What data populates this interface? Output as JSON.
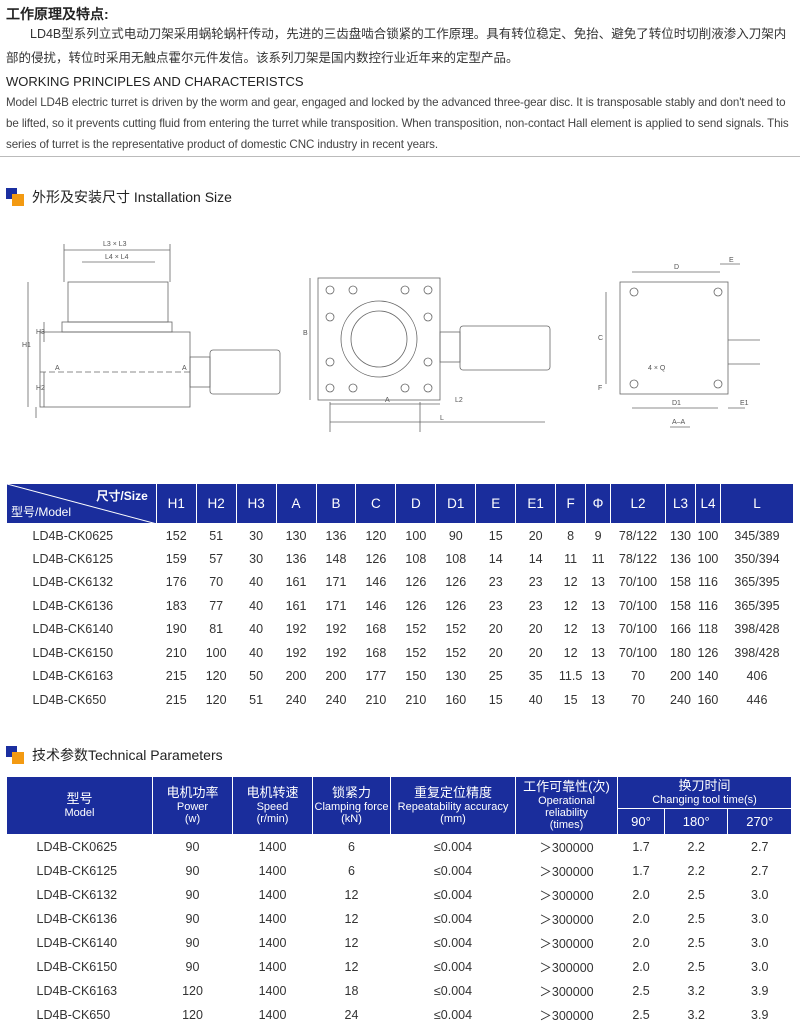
{
  "intro": {
    "title_cn": "工作原理及特点:",
    "para_cn": "LD4B型系列立式电动刀架采用蜗轮蜗杆传动，先进的三齿盘啮合锁紧的工作原理。具有转位稳定、免抬、避免了转位时切削液渗入刀架内部的侵扰，转位时采用无触点霍尔元件发信。该系列刀架是国内数控行业近年来的定型产品。",
    "title_en": "WORKING PRINCIPLES AND CHARACTERISTCS",
    "para_en": "Model LD4B electric turret  is driven by the worm and gear, engaged and locked by the advanced three-gear disc. It is transposable stably and don't need to be lifted, so it prevents cutting fluid from entering the turret while transposition. When transposition, non-contact Hall element is applied to send signals. This series of turret is the representative product of domestic CNC industry in recent years."
  },
  "install": {
    "title": "外形及安装尺寸 Installation Size",
    "labels": {
      "l3": "L3 × L3",
      "l4": "L4 × L4",
      "h1": "H1",
      "h2": "H2",
      "h3": "H3",
      "a": "A",
      "b": "B",
      "l2": "L2",
      "l": "L",
      "d": "D",
      "e": "E",
      "c": "C",
      "q": "4 × Q",
      "f": "F",
      "d1": "D1",
      "e1": "E1",
      "aa": "A–A"
    }
  },
  "size_table": {
    "corner_size": "尺寸/Size",
    "corner_model": "型号/Model",
    "headers": [
      "H1",
      "H2",
      "H3",
      "A",
      "B",
      "C",
      "D",
      "D1",
      "E",
      "E1",
      "F",
      "Φ",
      "L2",
      "L3",
      "L4",
      "L"
    ],
    "rows": [
      [
        "LD4B-CK0625",
        "152",
        "51",
        "30",
        "130",
        "136",
        "120",
        "100",
        "90",
        "15",
        "20",
        "8",
        "9",
        "78/122",
        "130",
        "100",
        "345/389"
      ],
      [
        "LD4B-CK6125",
        "159",
        "57",
        "30",
        "136",
        "148",
        "126",
        "108",
        "108",
        "14",
        "14",
        "11",
        "11",
        "78/122",
        "136",
        "100",
        "350/394"
      ],
      [
        "LD4B-CK6132",
        "176",
        "70",
        "40",
        "161",
        "171",
        "146",
        "126",
        "126",
        "23",
        "23",
        "12",
        "13",
        "70/100",
        "158",
        "116",
        "365/395"
      ],
      [
        "LD4B-CK6136",
        "183",
        "77",
        "40",
        "161",
        "171",
        "146",
        "126",
        "126",
        "23",
        "23",
        "12",
        "13",
        "70/100",
        "158",
        "116",
        "365/395"
      ],
      [
        "LD4B-CK6140",
        "190",
        "81",
        "40",
        "192",
        "192",
        "168",
        "152",
        "152",
        "20",
        "20",
        "12",
        "13",
        "70/100",
        "166",
        "118",
        "398/428"
      ],
      [
        "LD4B-CK6150",
        "210",
        "100",
        "40",
        "192",
        "192",
        "168",
        "152",
        "152",
        "20",
        "20",
        "12",
        "13",
        "70/100",
        "180",
        "126",
        "398/428"
      ],
      [
        "LD4B-CK6163",
        "215",
        "120",
        "50",
        "200",
        "200",
        "177",
        "150",
        "130",
        "25",
        "35",
        "11.5",
        "13",
        "70",
        "200",
        "140",
        "406"
      ],
      [
        "LD4B-CK650",
        "215",
        "120",
        "51",
        "240",
        "240",
        "210",
        "210",
        "160",
        "15",
        "40",
        "15",
        "13",
        "70",
        "240",
        "160",
        "446"
      ]
    ]
  },
  "tech": {
    "title": "技术参数Technical Parameters",
    "headers": [
      {
        "cn": "型号",
        "en": "Model"
      },
      {
        "cn": "电机功率",
        "en": "Power",
        "unit": "(w)"
      },
      {
        "cn": "电机转速",
        "en": "Speed",
        "unit": "(r/min)"
      },
      {
        "cn": "锁紧力",
        "en": "Clamping force",
        "unit": "(kN)"
      },
      {
        "cn": "重复定位精度",
        "en": "Repeatability accuracy",
        "unit": "(mm)"
      },
      {
        "cn": "工作可靠性(次)",
        "en": "Operational reliability",
        "unit": "(times)"
      },
      {
        "cn": "换刀时间",
        "en": "Changing tool time(s)"
      }
    ],
    "angles": [
      "90°",
      "180°",
      "270°"
    ],
    "rows": [
      [
        "LD4B-CK0625",
        "90",
        "1400",
        "6",
        "≤0.004",
        "＞300000",
        "1.7",
        "2.2",
        "2.7"
      ],
      [
        "LD4B-CK6125",
        "90",
        "1400",
        "6",
        "≤0.004",
        "＞300000",
        "1.7",
        "2.2",
        "2.7"
      ],
      [
        "LD4B-CK6132",
        "90",
        "1400",
        "12",
        "≤0.004",
        "＞300000",
        "2.0",
        "2.5",
        "3.0"
      ],
      [
        "LD4B-CK6136",
        "90",
        "1400",
        "12",
        "≤0.004",
        "＞300000",
        "2.0",
        "2.5",
        "3.0"
      ],
      [
        "LD4B-CK6140",
        "90",
        "1400",
        "12",
        "≤0.004",
        "＞300000",
        "2.0",
        "2.5",
        "3.0"
      ],
      [
        "LD4B-CK6150",
        "90",
        "1400",
        "12",
        "≤0.004",
        "＞300000",
        "2.0",
        "2.5",
        "3.0"
      ],
      [
        "LD4B-CK6163",
        "120",
        "1400",
        "18",
        "≤0.004",
        "＞300000",
        "2.5",
        "3.2",
        "3.9"
      ],
      [
        "LD4B-CK650",
        "120",
        "1400",
        "24",
        "≤0.004",
        "＞300000",
        "2.5",
        "3.2",
        "3.9"
      ]
    ]
  },
  "colors": {
    "header_blue": "#1a2d9c",
    "accent_orange": "#f39a12"
  }
}
